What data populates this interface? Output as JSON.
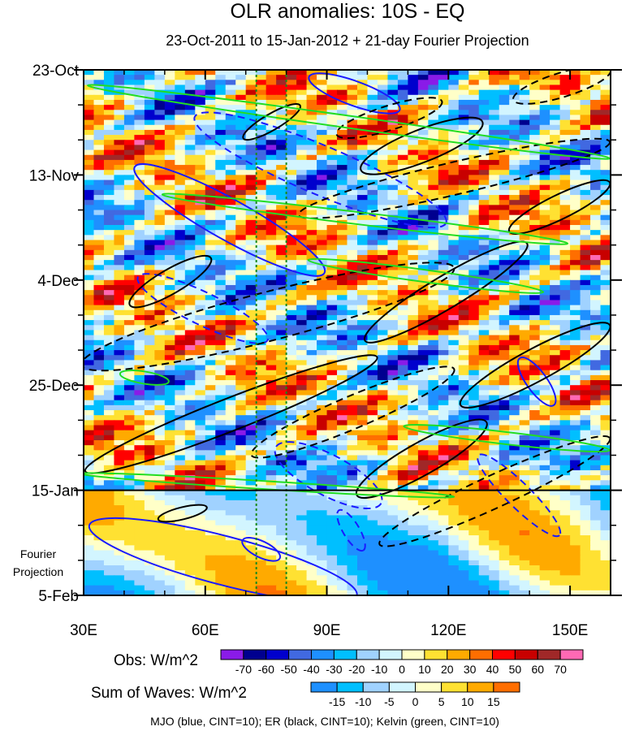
{
  "chart_data": {
    "type": "heatmap",
    "title": "OLR anomalies: 10S - EQ",
    "subtitle": "23-Oct-2011 to 15-Jan-2012 + 21-day Fourier Projection",
    "xlim": [
      30,
      160
    ],
    "ylim_days": [
      0,
      105
    ],
    "x_ticks": [
      {
        "value": 30,
        "label": "30E"
      },
      {
        "value": 60,
        "label": "60E"
      },
      {
        "value": 90,
        "label": "90E"
      },
      {
        "value": 120,
        "label": "120E"
      },
      {
        "value": 150,
        "label": "150E"
      }
    ],
    "y_ticks": [
      {
        "day": 0,
        "label": "23-Oct"
      },
      {
        "day": 21,
        "label": "13-Nov"
      },
      {
        "day": 42,
        "label": "4-Dec"
      },
      {
        "day": 63,
        "label": "25-Dec"
      },
      {
        "day": 84,
        "label": "15-Jan"
      },
      {
        "day": 105,
        "label": "5-Feb"
      }
    ],
    "projection_label": [
      "Fourier",
      "Projection"
    ],
    "projection_start_day": 84,
    "reference_lons": [
      72.6,
      80
    ],
    "obs_colorbar": {
      "label": "Obs: W/m^2",
      "levels": [
        "-70",
        "-60",
        "-50",
        "-40",
        "-30",
        "-20",
        "-10",
        "0",
        "10",
        "20",
        "30",
        "40",
        "50",
        "60",
        "70"
      ],
      "colors": [
        "#8a1be8",
        "#00008f",
        "#0000cd",
        "#4169e1",
        "#1e90ff",
        "#00bfff",
        "#a0d2ff",
        "#d2f5ff",
        "#ffffc8",
        "#ffe132",
        "#ffaa00",
        "#ff6e00",
        "#ff0000",
        "#c80000",
        "#a02828",
        "#ff69b4"
      ]
    },
    "waves_colorbar": {
      "label": "Sum of Waves: W/m^2",
      "levels": [
        "-15",
        "-10",
        "-5",
        "0",
        "5",
        "10",
        "15"
      ],
      "colors": [
        "#1e90ff",
        "#00bfff",
        "#a0d2ff",
        "#d2f5ff",
        "#ffffc8",
        "#ffe132",
        "#ffaa00",
        "#ff6e00"
      ]
    },
    "footer": "MJO (blue, CINT=10); ER (black, CINT=10); Kelvin (green, CINT=10)",
    "contours": [
      {
        "wave": "MJO",
        "color": "#1a1aff",
        "dash": false,
        "c": [
          66,
          30
        ],
        "e": [
          89.4,
          40.6
        ],
        "w": 5
      },
      {
        "wave": "MJO",
        "color": "#1a1aff",
        "dash": false,
        "c": [
          64.4,
          98
        ],
        "e": [
          97.4,
          105
        ],
        "w": 6
      },
      {
        "wave": "MJO",
        "color": "#1a1aff",
        "dash": false,
        "c": [
          73.8,
          95.8
        ],
        "e": [
          78.4,
          97.6
        ],
        "w": 2
      },
      {
        "wave": "MJO",
        "color": "#1a1aff",
        "dash": false,
        "c": [
          96.8,
          4.7
        ],
        "e": [
          108,
          8
        ],
        "w": 3
      },
      {
        "wave": "MJO",
        "color": "#1a1aff",
        "dash": false,
        "c": [
          141.8,
          62.3
        ],
        "e": [
          146,
          67
        ],
        "w": 2.5
      },
      {
        "wave": "MJO",
        "color": "#1a1aff",
        "dash": true,
        "c": [
          88.4,
          20
        ],
        "e": [
          119.4,
          30.6
        ],
        "w": 6
      },
      {
        "wave": "MJO",
        "color": "#1a1aff",
        "dash": true,
        "c": [
          59.4,
          47.7
        ],
        "e": [
          75.4,
          54
        ],
        "w": 4
      },
      {
        "wave": "MJO",
        "color": "#1a1aff",
        "dash": true,
        "c": [
          90.4,
          81
        ],
        "e": [
          103.4,
          86.6
        ],
        "w": 5
      },
      {
        "wave": "MJO",
        "color": "#1a1aff",
        "dash": true,
        "c": [
          137.4,
          85
        ],
        "e": [
          147.4,
          93
        ],
        "w": 3
      },
      {
        "wave": "MJO",
        "color": "#1a1aff",
        "dash": true,
        "c": [
          96,
          92
        ],
        "e": [
          99,
          96
        ],
        "w": 2
      },
      {
        "wave": "ER",
        "color": "#000000",
        "dash": false,
        "c": [
          66.4,
          68.8
        ],
        "e": [
          102.4,
          57.4
        ],
        "w": 4
      },
      {
        "wave": "ER",
        "color": "#000000",
        "dash": false,
        "c": [
          113.4,
          77.7
        ],
        "e": [
          129.4,
          70.4
        ],
        "w": 4
      },
      {
        "wave": "ER",
        "color": "#000000",
        "dash": false,
        "c": [
          119.4,
          44.4
        ],
        "e": [
          139.4,
          34.7
        ],
        "w": 4
      },
      {
        "wave": "ER",
        "color": "#000000",
        "dash": false,
        "c": [
          141.4,
          59
        ],
        "e": [
          159.8,
          51
        ],
        "w": 4
      },
      {
        "wave": "ER",
        "color": "#000000",
        "dash": false,
        "c": [
          113.4,
          15.2
        ],
        "e": [
          128.4,
          10.4
        ],
        "w": 4
      },
      {
        "wave": "ER",
        "color": "#000000",
        "dash": false,
        "c": [
          147.4,
          27.4
        ],
        "e": [
          159.8,
          22.5
        ],
        "w": 3
      },
      {
        "wave": "ER",
        "color": "#000000",
        "dash": false,
        "c": [
          51.4,
          42.3
        ],
        "e": [
          61.4,
          37.6
        ],
        "w": 3
      },
      {
        "wave": "ER",
        "color": "#000000",
        "dash": false,
        "c": [
          54.4,
          88.6
        ],
        "e": [
          60.4,
          87.4
        ],
        "w": 1.5
      },
      {
        "wave": "ER",
        "color": "#000000",
        "dash": false,
        "c": [
          76.4,
          10.4
        ],
        "e": [
          83.4,
          7.1
        ],
        "w": 2
      },
      {
        "wave": "ER",
        "color": "#000000",
        "dash": true,
        "c": [
          75.4,
          49.3
        ],
        "e": [
          121.4,
          39.6
        ],
        "w": 6
      },
      {
        "wave": "ER",
        "color": "#000000",
        "dash": true,
        "c": [
          96.4,
          68.4
        ],
        "e": [
          121.4,
          59.8
        ],
        "w": 4
      },
      {
        "wave": "ER",
        "color": "#000000",
        "dash": true,
        "c": [
          131.4,
          84.2
        ],
        "e": [
          159.8,
          73.6
        ],
        "w": 4
      },
      {
        "wave": "ER",
        "color": "#000000",
        "dash": true,
        "c": [
          121.4,
          21.7
        ],
        "e": [
          159.8,
          14.4
        ],
        "w": 4
      },
      {
        "wave": "ER",
        "color": "#000000",
        "dash": true,
        "c": [
          105.4,
          9.6
        ],
        "e": [
          118.4,
          6.3
        ],
        "w": 3
      },
      {
        "wave": "ER",
        "color": "#000000",
        "dash": true,
        "c": [
          148,
          3
        ],
        "e": [
          160,
          0
        ],
        "w": 3
      },
      {
        "wave": "Kelvin",
        "color": "#22dd22",
        "dash": false,
        "c": [
          95.4,
          10.4
        ],
        "e": [
          159.8,
          17.7
        ],
        "w": 1.5
      },
      {
        "wave": "Kelvin",
        "color": "#22dd22",
        "dash": false,
        "c": [
          99.4,
          29.8
        ],
        "e": [
          149.4,
          34.7
        ],
        "w": 1.5
      },
      {
        "wave": "Kelvin",
        "color": "#22dd22",
        "dash": false,
        "c": [
          114.4,
          41.2
        ],
        "e": [
          143.4,
          44.4
        ],
        "w": 1.5
      },
      {
        "wave": "Kelvin",
        "color": "#22dd22",
        "dash": false,
        "c": [
          45,
          61.5
        ],
        "e": [
          51,
          62.3
        ],
        "w": 1.5
      },
      {
        "wave": "Kelvin",
        "color": "#22dd22",
        "dash": false,
        "c": [
          134.4,
          73.6
        ],
        "e": [
          159.8,
          76
        ],
        "w": 1.5
      },
      {
        "wave": "Kelvin",
        "color": "#22dd22",
        "dash": false,
        "c": [
          75.4,
          83
        ],
        "e": [
          121.4,
          85.3
        ],
        "w": 1
      }
    ]
  }
}
